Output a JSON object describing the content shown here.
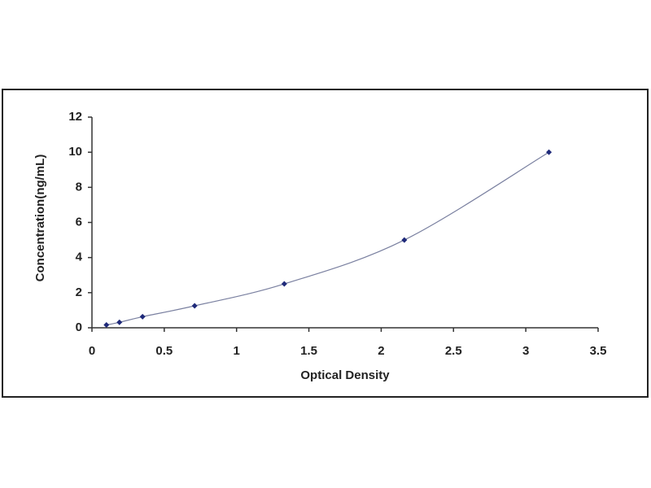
{
  "chart_data": {
    "type": "scatter",
    "x_label": "Optical Density",
    "y_label": "Concentration(ng/mL)",
    "x": [
      0.1,
      0.19,
      0.35,
      0.71,
      1.33,
      2.16,
      3.16
    ],
    "values": [
      0.16,
      0.31,
      0.63,
      1.25,
      2.5,
      5,
      10
    ],
    "color": "#1f2a7a",
    "line_color": "#7a80a0",
    "line": true,
    "grid": false,
    "xlim": [
      0,
      3.5
    ],
    "xticks": [
      0,
      0.5,
      1,
      1.5,
      2,
      2.5,
      3,
      3.5
    ],
    "ylim": [
      0,
      12
    ],
    "yticks": [
      0,
      2,
      4,
      6,
      8,
      10,
      12
    ]
  }
}
